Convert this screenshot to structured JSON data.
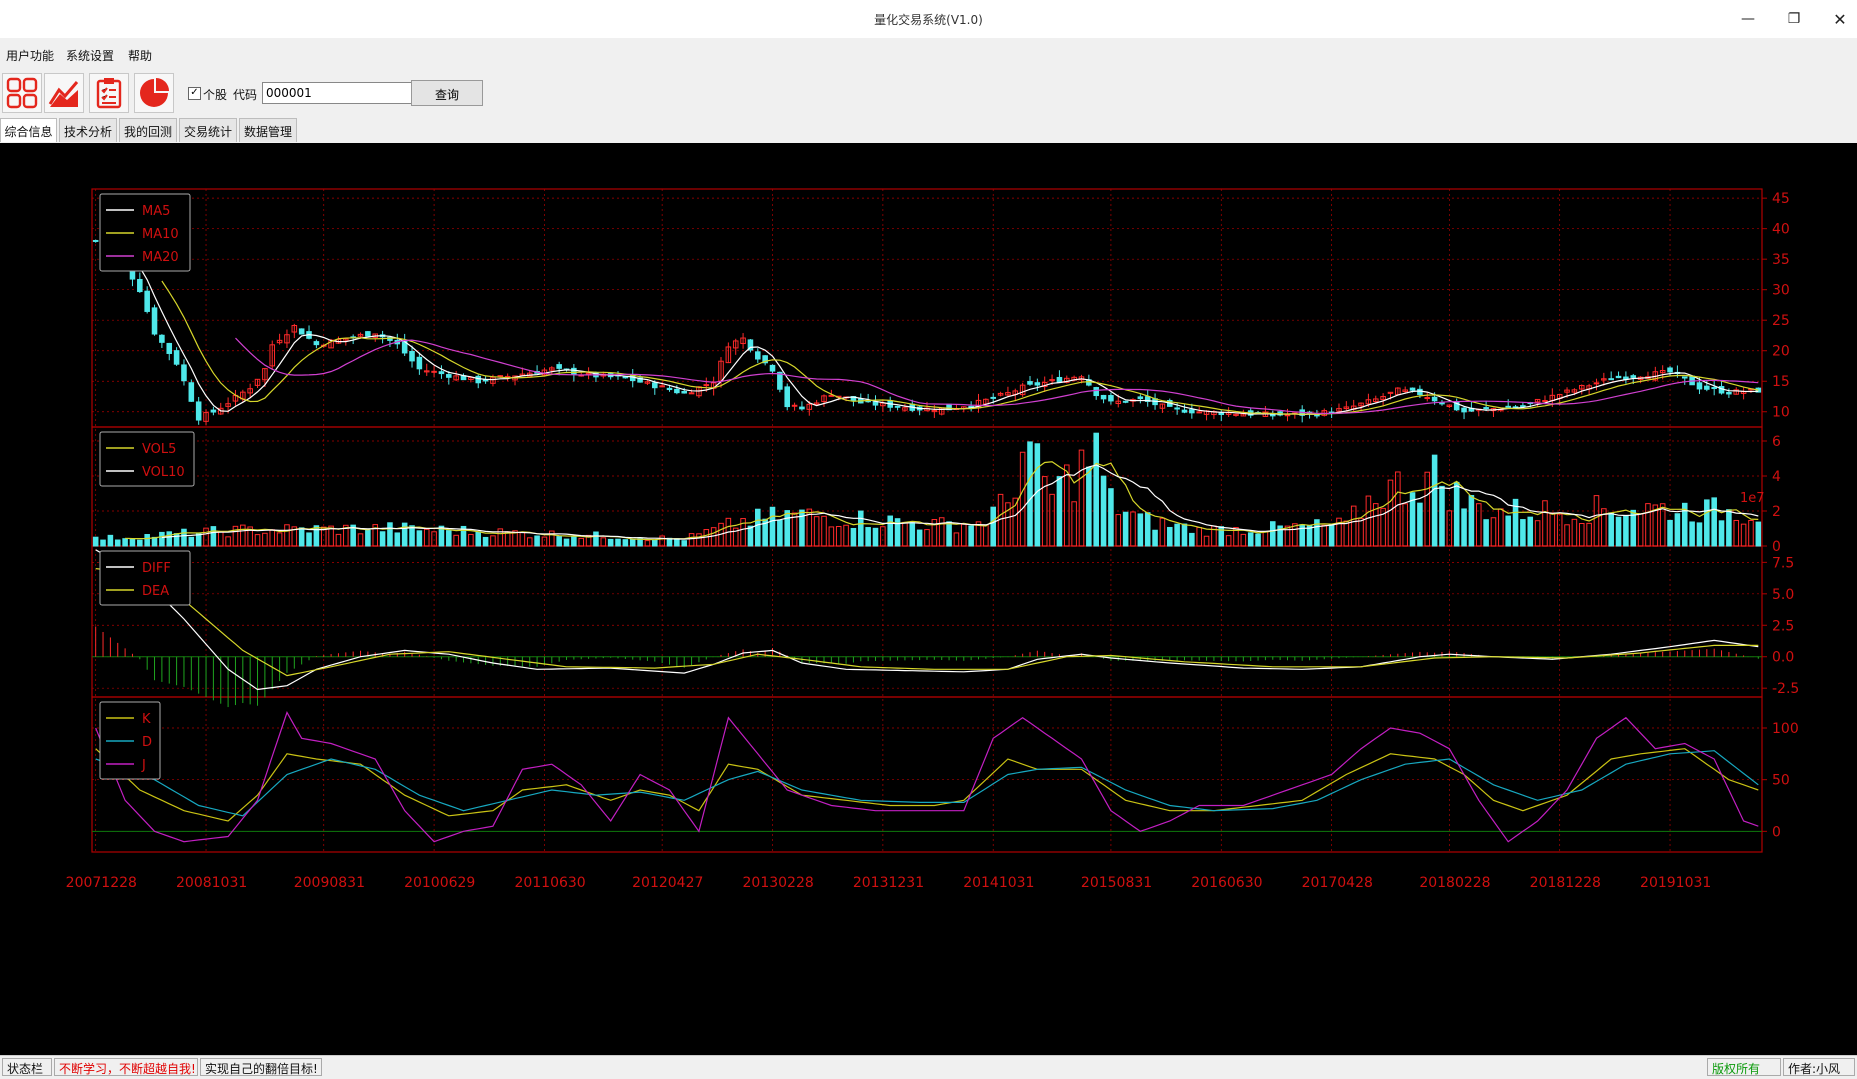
{
  "window": {
    "title": "量化交易系统(V1.0)"
  },
  "menu": [
    "用户功能",
    "系统设置",
    "帮助"
  ],
  "toolbar": {
    "buttons": [
      "grid-icon",
      "trend-chart-icon",
      "clipboard-icon",
      "pie-chart-icon"
    ],
    "checkbox_label": "个股",
    "checkbox_checked": true,
    "code_label": "代码",
    "code_value": "000001",
    "query_label": "查询"
  },
  "tabs": [
    "综合信息",
    "技术分析",
    "我的回测",
    "交易统计",
    "数据管理"
  ],
  "statusbar": {
    "label": "状态栏",
    "message": "不断学习，不断超越自我!",
    "goal": "实现自己的翻倍目标!",
    "copyright": "版权所有",
    "author": "作者:小风"
  },
  "colors": {
    "grid": "#b00000",
    "text": "#d01010",
    "up": "#ff2a2a",
    "down": "#4fe8ea",
    "ma5": "#ffffff",
    "ma10": "#d6d62a",
    "ma20": "#d040d0",
    "k": "#c9c214",
    "d": "#17a8c0",
    "j": "#c21fc2"
  },
  "chart_data": [
    {
      "type": "candlestick",
      "legend": [
        "MA5",
        "MA10",
        "MA20"
      ],
      "legend_position": "top-left",
      "y_ticks": [
        10,
        15,
        20,
        25,
        30,
        35,
        40,
        45
      ],
      "ylim": [
        7.5,
        46.5
      ],
      "x_tick_labels": [
        "20071228",
        "20081031",
        "20090831",
        "20100629",
        "20110630",
        "20120427",
        "20130228",
        "20131231",
        "20141031",
        "20150831",
        "20160630",
        "20170428",
        "20180228",
        "20181228",
        "20191031"
      ],
      "close_anchors": [
        [
          0,
          38
        ],
        [
          3,
          36
        ],
        [
          6,
          30
        ],
        [
          8,
          23
        ],
        [
          11,
          18
        ],
        [
          13,
          12
        ],
        [
          14,
          9
        ],
        [
          16,
          10
        ],
        [
          18,
          11.5
        ],
        [
          21,
          14
        ],
        [
          23,
          17
        ],
        [
          24,
          21
        ],
        [
          27,
          24
        ],
        [
          30,
          21
        ],
        [
          34,
          22
        ],
        [
          38,
          23
        ],
        [
          41,
          21
        ],
        [
          44,
          17
        ],
        [
          48,
          16
        ],
        [
          52,
          15
        ],
        [
          57,
          16
        ],
        [
          62,
          17
        ],
        [
          67,
          16
        ],
        [
          72,
          15.5
        ],
        [
          77,
          14
        ],
        [
          80,
          13
        ],
        [
          84,
          15
        ],
        [
          86,
          21
        ],
        [
          88,
          22
        ],
        [
          90,
          19
        ],
        [
          92,
          17
        ],
        [
          94,
          11
        ],
        [
          96,
          10.5
        ],
        [
          100,
          13
        ],
        [
          104,
          11.5
        ],
        [
          108,
          11
        ],
        [
          112,
          10.5
        ],
        [
          116,
          10.5
        ],
        [
          120,
          11.5
        ],
        [
          124,
          13
        ],
        [
          126,
          14
        ],
        [
          130,
          15
        ],
        [
          134,
          16
        ],
        [
          136,
          13
        ],
        [
          138,
          11.5
        ],
        [
          142,
          12
        ],
        [
          146,
          10.5
        ],
        [
          150,
          10
        ],
        [
          154,
          9.8
        ],
        [
          158,
          9.6
        ],
        [
          162,
          9.5
        ],
        [
          166,
          9.7
        ],
        [
          170,
          10.5
        ],
        [
          174,
          12
        ],
        [
          177,
          13.5
        ],
        [
          180,
          13
        ],
        [
          183,
          11.5
        ],
        [
          186,
          10
        ],
        [
          190,
          10.5
        ],
        [
          194,
          11
        ],
        [
          198,
          12.5
        ],
        [
          202,
          14
        ],
        [
          206,
          15.5
        ],
        [
          210,
          16
        ],
        [
          214,
          16.5
        ],
        [
          218,
          14
        ],
        [
          222,
          13.2
        ],
        [
          226,
          13.5
        ]
      ],
      "ma_lines": {
        "MA5": "close moving average 5",
        "MA10": "close moving average 10",
        "MA20": "close moving average 20"
      }
    },
    {
      "type": "bar",
      "name": "volume",
      "legend": [
        "VOL5",
        "VOL10"
      ],
      "legend_position": "top-left",
      "y_ticks": [
        0,
        2,
        4,
        6
      ],
      "ylim": [
        0,
        6.8
      ],
      "scale_label": "1e7",
      "vol_anchors": [
        [
          0,
          0.4
        ],
        [
          20,
          0.9
        ],
        [
          40,
          1.0
        ],
        [
          60,
          0.7
        ],
        [
          80,
          0.4
        ],
        [
          88,
          1.4
        ],
        [
          95,
          1.8
        ],
        [
          105,
          1.5
        ],
        [
          115,
          1.2
        ],
        [
          120,
          1.3
        ],
        [
          124,
          2.5
        ],
        [
          126,
          5.5
        ],
        [
          130,
          3.0
        ],
        [
          134,
          4.5
        ],
        [
          136,
          5.2
        ],
        [
          138,
          2.5
        ],
        [
          142,
          1.5
        ],
        [
          150,
          0.9
        ],
        [
          160,
          1.0
        ],
        [
          170,
          1.2
        ],
        [
          174,
          3.0
        ],
        [
          178,
          3.5
        ],
        [
          182,
          4.0
        ],
        [
          186,
          2.5
        ],
        [
          190,
          2.0
        ],
        [
          200,
          2.0
        ],
        [
          210,
          2.2
        ],
        [
          220,
          2.0
        ],
        [
          226,
          1.9
        ]
      ]
    },
    {
      "type": "line",
      "name": "MACD",
      "legend": [
        "DIFF",
        "DEA"
      ],
      "legend_position": "top-left",
      "y_ticks": [
        -2.5,
        0.0,
        2.5,
        5.0,
        7.5
      ],
      "ylim": [
        -3.2,
        8.8
      ],
      "diff_anchors": [
        [
          0,
          8.5
        ],
        [
          6,
          6.5
        ],
        [
          12,
          3.0
        ],
        [
          18,
          -1.0
        ],
        [
          22,
          -2.6
        ],
        [
          26,
          -2.3
        ],
        [
          30,
          -1.0
        ],
        [
          36,
          0.0
        ],
        [
          42,
          0.5
        ],
        [
          48,
          0.2
        ],
        [
          54,
          -0.5
        ],
        [
          60,
          -1.0
        ],
        [
          70,
          -0.9
        ],
        [
          80,
          -1.3
        ],
        [
          84,
          -0.6
        ],
        [
          88,
          0.3
        ],
        [
          92,
          0.5
        ],
        [
          96,
          -0.5
        ],
        [
          102,
          -1.0
        ],
        [
          110,
          -1.1
        ],
        [
          118,
          -1.2
        ],
        [
          124,
          -1.0
        ],
        [
          128,
          -0.2
        ],
        [
          134,
          0.2
        ],
        [
          138,
          -0.1
        ],
        [
          146,
          -0.5
        ],
        [
          156,
          -0.9
        ],
        [
          164,
          -1.0
        ],
        [
          172,
          -0.8
        ],
        [
          180,
          0.0
        ],
        [
          184,
          0.2
        ],
        [
          190,
          0.0
        ],
        [
          198,
          -0.2
        ],
        [
          206,
          0.2
        ],
        [
          214,
          0.8
        ],
        [
          220,
          1.3
        ],
        [
          226,
          0.8
        ]
      ],
      "dea_anchors": [
        [
          0,
          7.0
        ],
        [
          8,
          6.5
        ],
        [
          14,
          3.5
        ],
        [
          20,
          0.5
        ],
        [
          26,
          -1.5
        ],
        [
          32,
          -0.8
        ],
        [
          40,
          0.2
        ],
        [
          48,
          0.4
        ],
        [
          56,
          -0.2
        ],
        [
          64,
          -0.8
        ],
        [
          76,
          -0.9
        ],
        [
          84,
          -0.6
        ],
        [
          90,
          0.2
        ],
        [
          96,
          -0.2
        ],
        [
          104,
          -0.8
        ],
        [
          114,
          -1.0
        ],
        [
          124,
          -1.0
        ],
        [
          132,
          0.0
        ],
        [
          138,
          0.1
        ],
        [
          148,
          -0.4
        ],
        [
          160,
          -0.8
        ],
        [
          172,
          -0.8
        ],
        [
          182,
          -0.1
        ],
        [
          190,
          0.0
        ],
        [
          200,
          -0.1
        ],
        [
          210,
          0.3
        ],
        [
          220,
          0.9
        ],
        [
          226,
          0.9
        ]
      ]
    },
    {
      "type": "line",
      "name": "KDJ",
      "legend": [
        "K",
        "D",
        "J"
      ],
      "legend_position": "top-left",
      "y_ticks": [
        0,
        50,
        100
      ],
      "ylim": [
        -20,
        130
      ],
      "k_anchors": [
        [
          0,
          80
        ],
        [
          6,
          40
        ],
        [
          12,
          20
        ],
        [
          18,
          10
        ],
        [
          22,
          35
        ],
        [
          26,
          75
        ],
        [
          30,
          70
        ],
        [
          36,
          65
        ],
        [
          42,
          35
        ],
        [
          48,
          15
        ],
        [
          54,
          20
        ],
        [
          58,
          40
        ],
        [
          64,
          45
        ],
        [
          70,
          30
        ],
        [
          74,
          40
        ],
        [
          78,
          35
        ],
        [
          82,
          20
        ],
        [
          86,
          65
        ],
        [
          90,
          60
        ],
        [
          96,
          35
        ],
        [
          102,
          30
        ],
        [
          108,
          25
        ],
        [
          114,
          25
        ],
        [
          118,
          30
        ],
        [
          124,
          70
        ],
        [
          128,
          60
        ],
        [
          134,
          60
        ],
        [
          140,
          30
        ],
        [
          146,
          20
        ],
        [
          152,
          20
        ],
        [
          158,
          25
        ],
        [
          164,
          30
        ],
        [
          170,
          55
        ],
        [
          176,
          75
        ],
        [
          182,
          70
        ],
        [
          186,
          55
        ],
        [
          190,
          30
        ],
        [
          194,
          20
        ],
        [
          200,
          35
        ],
        [
          206,
          70
        ],
        [
          210,
          75
        ],
        [
          216,
          80
        ],
        [
          222,
          50
        ],
        [
          226,
          40
        ]
      ],
      "d_anchors": [
        [
          0,
          70
        ],
        [
          8,
          50
        ],
        [
          14,
          25
        ],
        [
          20,
          15
        ],
        [
          26,
          55
        ],
        [
          32,
          70
        ],
        [
          38,
          60
        ],
        [
          44,
          35
        ],
        [
          50,
          20
        ],
        [
          56,
          30
        ],
        [
          62,
          40
        ],
        [
          68,
          35
        ],
        [
          74,
          38
        ],
        [
          80,
          30
        ],
        [
          86,
          50
        ],
        [
          90,
          58
        ],
        [
          96,
          40
        ],
        [
          104,
          30
        ],
        [
          112,
          28
        ],
        [
          118,
          28
        ],
        [
          124,
          55
        ],
        [
          128,
          60
        ],
        [
          134,
          62
        ],
        [
          140,
          40
        ],
        [
          146,
          25
        ],
        [
          152,
          20
        ],
        [
          160,
          22
        ],
        [
          166,
          30
        ],
        [
          172,
          50
        ],
        [
          178,
          65
        ],
        [
          184,
          70
        ],
        [
          190,
          45
        ],
        [
          196,
          30
        ],
        [
          202,
          40
        ],
        [
          208,
          65
        ],
        [
          214,
          75
        ],
        [
          220,
          78
        ],
        [
          226,
          45
        ]
      ],
      "j_anchors": [
        [
          0,
          100
        ],
        [
          4,
          30
        ],
        [
          8,
          0
        ],
        [
          12,
          -10
        ],
        [
          18,
          -5
        ],
        [
          22,
          30
        ],
        [
          26,
          115
        ],
        [
          28,
          90
        ],
        [
          32,
          85
        ],
        [
          38,
          70
        ],
        [
          42,
          20
        ],
        [
          46,
          -10
        ],
        [
          50,
          0
        ],
        [
          54,
          5
        ],
        [
          58,
          60
        ],
        [
          62,
          65
        ],
        [
          66,
          45
        ],
        [
          70,
          10
        ],
        [
          74,
          55
        ],
        [
          78,
          40
        ],
        [
          82,
          0
        ],
        [
          86,
          110
        ],
        [
          90,
          75
        ],
        [
          94,
          40
        ],
        [
          100,
          25
        ],
        [
          106,
          20
        ],
        [
          112,
          20
        ],
        [
          118,
          20
        ],
        [
          122,
          90
        ],
        [
          126,
          110
        ],
        [
          130,
          90
        ],
        [
          134,
          70
        ],
        [
          138,
          20
        ],
        [
          142,
          0
        ],
        [
          146,
          10
        ],
        [
          150,
          25
        ],
        [
          156,
          25
        ],
        [
          162,
          40
        ],
        [
          168,
          55
        ],
        [
          172,
          80
        ],
        [
          176,
          100
        ],
        [
          180,
          95
        ],
        [
          184,
          80
        ],
        [
          188,
          30
        ],
        [
          192,
          -10
        ],
        [
          196,
          10
        ],
        [
          200,
          40
        ],
        [
          204,
          90
        ],
        [
          208,
          110
        ],
        [
          212,
          80
        ],
        [
          216,
          85
        ],
        [
          220,
          70
        ],
        [
          224,
          10
        ],
        [
          226,
          5
        ]
      ]
    }
  ]
}
